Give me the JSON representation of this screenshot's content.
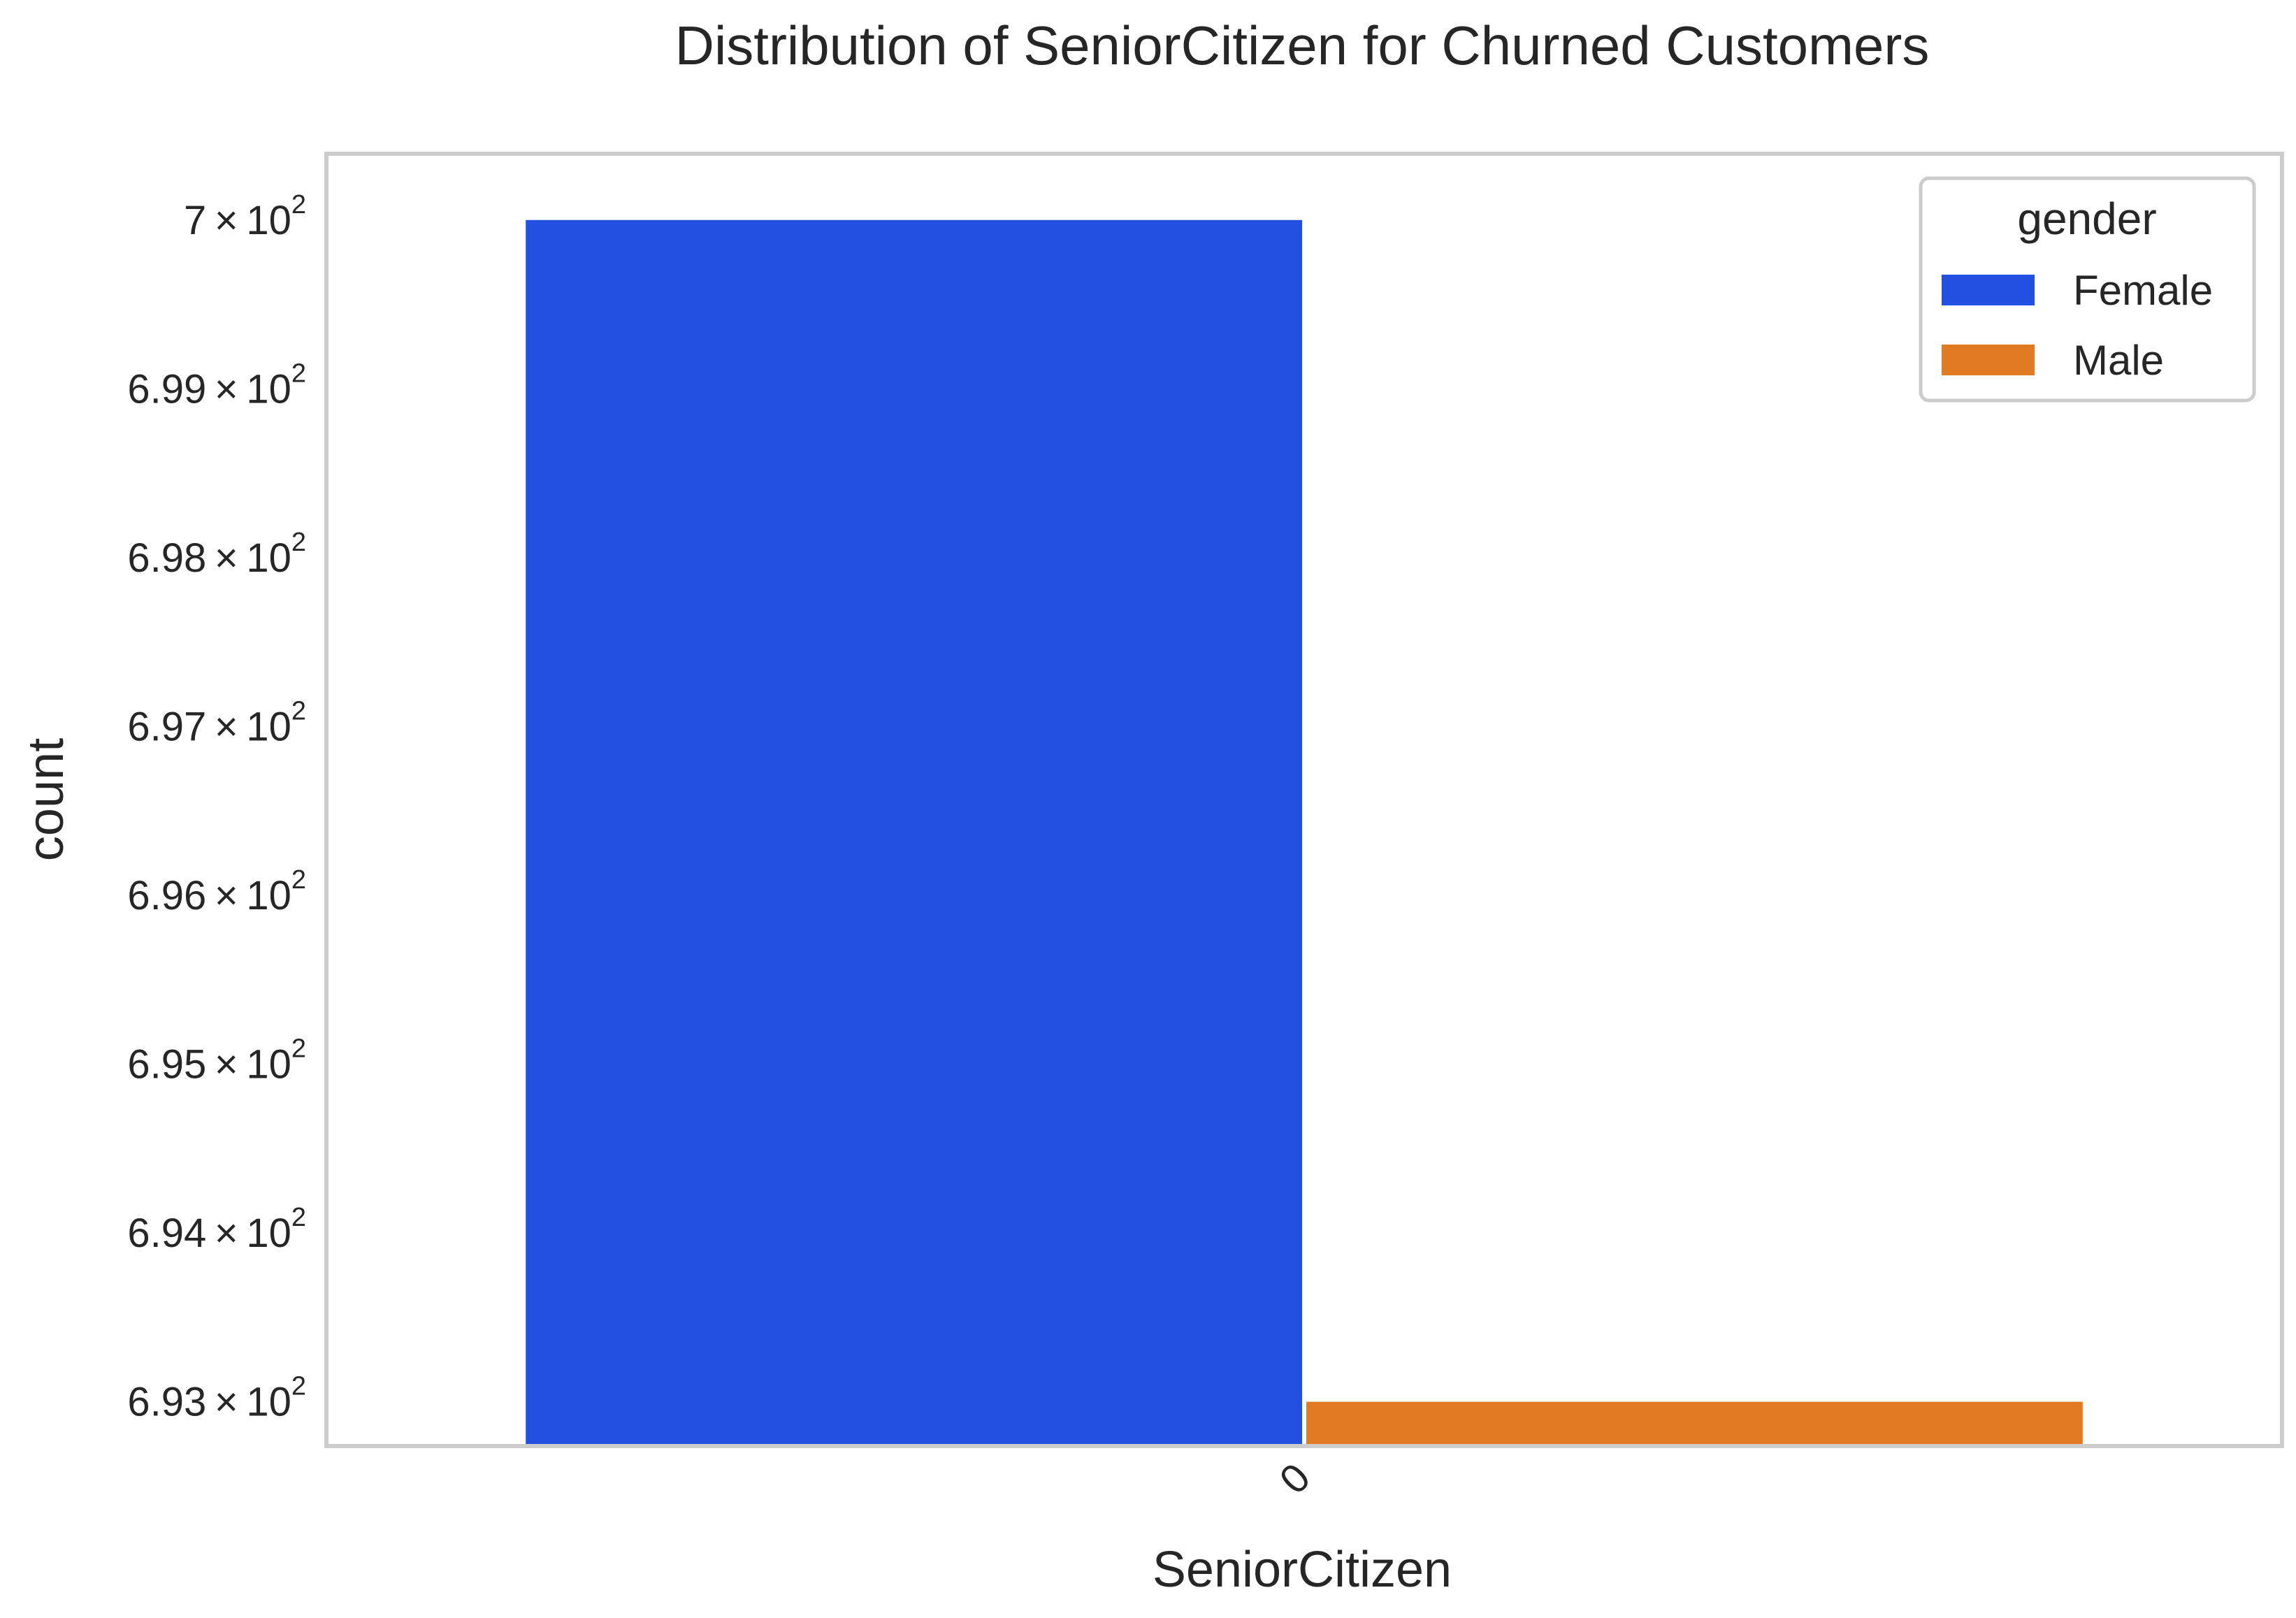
{
  "chart_data": {
    "type": "bar",
    "title": "Distribution of SeniorCitizen for Churned Customers",
    "xlabel": "SeniorCitizen",
    "ylabel": "count",
    "categories": [
      "0"
    ],
    "series": [
      {
        "name": "Female",
        "values": [
          700
        ],
        "color": "#2350e0"
      },
      {
        "name": "Male",
        "values": [
          693
        ],
        "color": "#e07b22"
      }
    ],
    "ylim": [
      692.75,
      700.38
    ],
    "y_ticks": [
      {
        "value": 693,
        "mantissa": "6.93",
        "exponent": "2"
      },
      {
        "value": 694,
        "mantissa": "6.94",
        "exponent": "2"
      },
      {
        "value": 695,
        "mantissa": "6.95",
        "exponent": "2"
      },
      {
        "value": 696,
        "mantissa": "6.96",
        "exponent": "2"
      },
      {
        "value": 697,
        "mantissa": "6.97",
        "exponent": "2"
      },
      {
        "value": 698,
        "mantissa": "6.98",
        "exponent": "2"
      },
      {
        "value": 699,
        "mantissa": "6.99",
        "exponent": "2"
      },
      {
        "value": 700,
        "mantissa": "7",
        "exponent": "2"
      }
    ],
    "y_tick_times": "×",
    "y_tick_base": "10",
    "x_tick_rotation_deg": -45,
    "legend": {
      "title": "gender",
      "position": "top-right"
    },
    "grid": false,
    "frame_color": "#cccccc"
  }
}
